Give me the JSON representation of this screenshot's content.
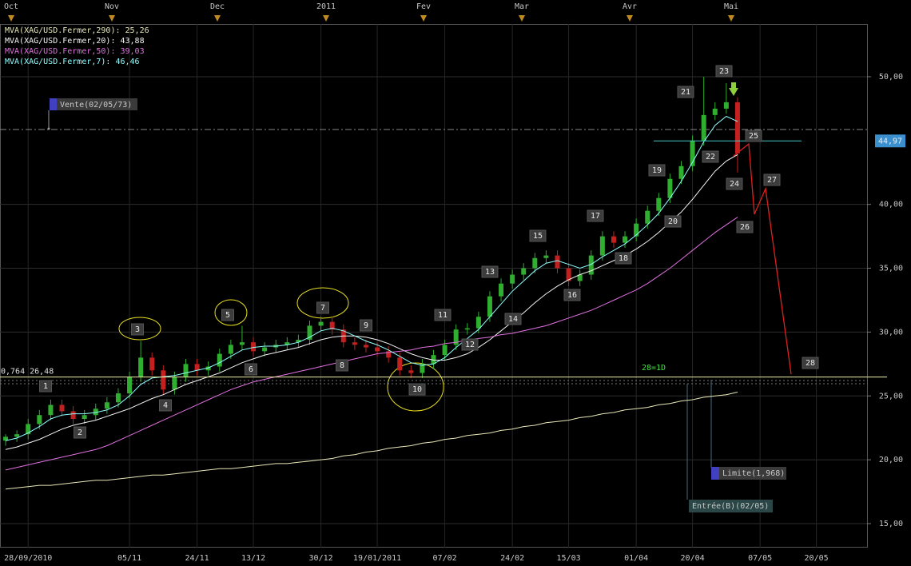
{
  "chart_data": {
    "type": "candlestick",
    "categories": [
      null,
      null,
      "28/09/2010",
      null,
      null,
      null,
      null,
      null,
      null,
      null,
      null,
      "05/11",
      null,
      null,
      null,
      null,
      null,
      "24/11",
      null,
      null,
      null,
      null,
      "13/12",
      null,
      null,
      null,
      null,
      null,
      "30/12",
      null,
      null,
      null,
      null,
      "19/01/2011",
      null,
      null,
      null,
      null,
      null,
      "07/02",
      null,
      null,
      null,
      null,
      null,
      "24/02",
      null,
      null,
      null,
      null,
      "15/03",
      null,
      null,
      null,
      null,
      null,
      "01/04",
      null,
      null,
      null,
      null,
      "20/04",
      null,
      null,
      null,
      null,
      null,
      "07/05",
      null,
      null,
      null,
      null,
      "20/05",
      null,
      null,
      null,
      null
    ],
    "open": [
      21.5,
      21.8,
      22.0,
      22.8,
      23.5,
      24.3,
      23.8,
      23.2,
      23.5,
      24.0,
      24.5,
      25.2,
      26.5,
      28.0,
      27.0,
      25.5,
      26.5,
      27.5,
      27.0,
      27.3,
      28.3,
      29.0,
      29.2,
      28.5,
      28.8,
      29.0,
      29.2,
      29.4,
      30.5,
      30.8,
      30.2,
      29.2,
      29.0,
      28.8,
      28.5,
      28.0,
      27.0,
      26.8,
      27.5,
      28.2,
      29.0,
      30.2,
      30.3,
      31.2,
      32.8,
      33.8,
      34.5,
      35.0,
      35.8,
      36.0,
      35.0,
      34.0,
      34.5,
      36.0,
      37.5,
      37.0,
      37.5,
      38.5,
      39.5,
      40.5,
      42.0,
      43.0,
      45.0,
      47.0,
      47.5,
      48.0,
      null,
      null,
      null,
      null,
      null,
      null,
      null,
      null,
      null,
      null,
      null
    ],
    "high": [
      22.0,
      22.3,
      23.2,
      23.9,
      24.7,
      24.7,
      24.2,
      23.9,
      24.4,
      24.9,
      25.6,
      26.9,
      29.3,
      28.4,
      27.4,
      26.9,
      27.9,
      27.9,
      27.7,
      28.7,
      29.4,
      30.5,
      29.6,
      29.2,
      29.4,
      29.6,
      29.8,
      30.9,
      31.2,
      31.2,
      30.6,
      29.6,
      29.4,
      29.2,
      28.9,
      28.4,
      27.4,
      27.9,
      28.6,
      29.4,
      30.6,
      30.7,
      31.6,
      33.2,
      34.2,
      34.9,
      35.4,
      36.2,
      36.4,
      36.4,
      35.4,
      34.9,
      36.4,
      37.9,
      37.9,
      37.9,
      38.9,
      39.9,
      40.9,
      42.4,
      43.4,
      45.4,
      50.0,
      48.0,
      49.5,
      48.4,
      null,
      null,
      null,
      null,
      null,
      null,
      null,
      null,
      null,
      null,
      null
    ],
    "low": [
      21.1,
      21.4,
      21.6,
      22.4,
      23.1,
      23.4,
      22.8,
      22.8,
      23.1,
      23.6,
      24.1,
      24.8,
      26.1,
      26.6,
      25.1,
      25.1,
      26.1,
      26.6,
      26.6,
      26.9,
      27.9,
      28.6,
      28.1,
      28.1,
      28.4,
      28.6,
      28.8,
      29.0,
      30.1,
      29.8,
      28.8,
      28.6,
      28.4,
      28.1,
      27.6,
      26.6,
      26.4,
      26.4,
      27.1,
      27.8,
      28.6,
      29.8,
      29.9,
      30.8,
      32.4,
      33.4,
      34.1,
      34.6,
      35.4,
      34.6,
      33.6,
      33.6,
      34.1,
      35.6,
      36.6,
      36.6,
      37.1,
      38.1,
      39.1,
      40.1,
      41.6,
      42.6,
      44.6,
      46.6,
      47.1,
      42.5,
      null,
      null,
      null,
      null,
      null,
      null,
      null,
      null,
      null,
      null,
      null
    ],
    "close": [
      21.8,
      22.0,
      22.8,
      23.5,
      24.3,
      23.8,
      23.2,
      23.5,
      24.0,
      24.5,
      25.2,
      26.5,
      28.0,
      27.0,
      25.5,
      26.5,
      27.5,
      27.0,
      27.3,
      28.3,
      29.0,
      29.2,
      28.5,
      28.8,
      29.0,
      29.2,
      29.4,
      30.5,
      30.8,
      30.2,
      29.2,
      29.0,
      28.8,
      28.5,
      28.0,
      27.0,
      26.8,
      27.5,
      28.2,
      29.0,
      30.2,
      30.3,
      31.2,
      32.8,
      33.8,
      34.5,
      35.0,
      35.8,
      36.0,
      35.0,
      34.0,
      34.5,
      36.0,
      37.5,
      37.0,
      37.5,
      38.5,
      39.5,
      40.5,
      42.0,
      43.0,
      45.0,
      47.0,
      47.5,
      48.0,
      44.0,
      null,
      null,
      null,
      null,
      null,
      null,
      null,
      null,
      null,
      null,
      null
    ],
    "up_color": "#2fae2f",
    "down_color": "#c42020",
    "series": [
      {
        "name": "MVA(XAG/USD.Fermer,290): 25,26",
        "color": "#e8e8b8",
        "values": [
          17.7,
          17.8,
          17.9,
          18.0,
          18.0,
          18.1,
          18.2,
          18.3,
          18.4,
          18.4,
          18.5,
          18.6,
          18.7,
          18.8,
          18.8,
          18.9,
          19.0,
          19.1,
          19.2,
          19.3,
          19.3,
          19.4,
          19.5,
          19.6,
          19.7,
          19.7,
          19.8,
          19.9,
          20.0,
          20.1,
          20.3,
          20.4,
          20.6,
          20.7,
          20.9,
          21.0,
          21.1,
          21.3,
          21.4,
          21.6,
          21.7,
          21.9,
          22.0,
          22.1,
          22.3,
          22.4,
          22.6,
          22.7,
          22.9,
          23.0,
          23.1,
          23.3,
          23.4,
          23.6,
          23.7,
          23.9,
          24.0,
          24.1,
          24.3,
          24.4,
          24.6,
          24.7,
          24.9,
          25.0,
          25.1,
          25.3,
          null,
          null,
          null,
          null,
          null,
          null,
          null,
          null,
          null,
          null,
          null
        ]
      },
      {
        "name": "MVA(XAG/USD.Fermer,20): 43,88",
        "color": "#f4f4f4",
        "values": [
          20.8,
          21.0,
          21.3,
          21.6,
          22.0,
          22.4,
          22.7,
          22.9,
          23.1,
          23.4,
          23.7,
          24.0,
          24.4,
          24.8,
          25.1,
          25.5,
          25.9,
          26.2,
          26.5,
          26.8,
          27.2,
          27.6,
          27.9,
          28.2,
          28.4,
          28.6,
          28.8,
          29.1,
          29.4,
          29.6,
          29.7,
          29.7,
          29.6,
          29.4,
          29.1,
          28.7,
          28.3,
          28.0,
          27.8,
          27.8,
          28.0,
          28.3,
          28.8,
          29.4,
          30.1,
          30.8,
          31.5,
          32.3,
          33.0,
          33.6,
          34.1,
          34.5,
          34.8,
          35.2,
          35.6,
          36.0,
          36.5,
          37.1,
          37.8,
          38.6,
          39.4,
          40.4,
          41.5,
          42.6,
          43.4,
          43.9,
          null,
          null,
          null,
          null,
          null,
          null,
          null,
          null,
          null,
          null,
          null
        ]
      },
      {
        "name": "MVA(XAG/USD.Fermer,50): 39,03",
        "color": "#e070e0",
        "values": [
          19.2,
          19.4,
          19.6,
          19.8,
          20.0,
          20.2,
          20.4,
          20.6,
          20.8,
          21.1,
          21.5,
          21.9,
          22.3,
          22.7,
          23.1,
          23.5,
          23.9,
          24.3,
          24.7,
          25.1,
          25.5,
          25.8,
          26.1,
          26.3,
          26.5,
          26.7,
          26.9,
          27.1,
          27.3,
          27.5,
          27.7,
          27.9,
          28.1,
          28.3,
          28.4,
          28.5,
          28.6,
          28.8,
          28.9,
          29.1,
          29.2,
          29.4,
          29.5,
          29.6,
          29.8,
          29.9,
          30.1,
          30.3,
          30.5,
          30.8,
          31.1,
          31.4,
          31.7,
          32.1,
          32.5,
          32.9,
          33.3,
          33.8,
          34.4,
          35.0,
          35.7,
          36.4,
          37.1,
          37.8,
          38.4,
          39.0,
          null,
          null,
          null,
          null,
          null,
          null,
          null,
          null,
          null,
          null,
          null
        ]
      },
      {
        "name": "MVA(XAG/USD.Fermer,7): 46,46",
        "color": "#90ffff",
        "values": [
          21.5,
          21.7,
          22.1,
          22.6,
          23.2,
          23.5,
          23.6,
          23.6,
          23.7,
          23.9,
          24.3,
          25.0,
          25.9,
          26.4,
          26.5,
          26.6,
          26.8,
          27.0,
          27.2,
          27.6,
          28.1,
          28.6,
          28.8,
          28.9,
          28.9,
          29.0,
          29.2,
          29.6,
          30.1,
          30.3,
          30.1,
          29.7,
          29.3,
          29.0,
          28.6,
          28.1,
          27.6,
          27.4,
          27.5,
          28.0,
          28.8,
          29.5,
          30.2,
          31.2,
          32.2,
          33.2,
          34.0,
          34.8,
          35.4,
          35.6,
          35.3,
          35.0,
          35.3,
          35.9,
          36.4,
          36.9,
          37.6,
          38.4,
          39.3,
          40.5,
          41.8,
          43.3,
          44.9,
          46.2,
          46.9,
          46.5,
          null,
          null,
          null,
          null,
          null,
          null,
          null,
          null,
          null,
          null,
          null
        ]
      }
    ],
    "ylim": [
      13.12,
      54.13
    ],
    "yticks": [
      {
        "value": 15,
        "label": "15,00"
      },
      {
        "value": 20,
        "label": "20,00"
      },
      {
        "value": 25,
        "label": "25,00"
      },
      {
        "value": 30,
        "label": "30,00"
      },
      {
        "value": 35,
        "label": "35,00"
      },
      {
        "value": 40,
        "label": "40,00"
      },
      {
        "value": 50,
        "label": "50,00"
      }
    ],
    "grid": true,
    "months": [
      "Oct",
      "Nov",
      "Dec",
      "2011",
      "Fev",
      "Mar",
      "Avr",
      "Mai"
    ],
    "levels": [
      {
        "value": 26.48,
        "label": "0,764 26,48",
        "color": "#f0f0a8"
      },
      {
        "value": 44.97,
        "label": "44,97",
        "color": "#40c8c8"
      }
    ],
    "annotations": [
      "1",
      "2",
      "3",
      "4",
      "5",
      "6",
      "7",
      "8",
      "9",
      "10",
      "11",
      "12",
      "13",
      "14",
      "15",
      "16",
      "17",
      "18",
      "19",
      "20",
      "21",
      "22",
      "23",
      "24",
      "25",
      "26",
      "27",
      "28"
    ],
    "ratio": "28=1D",
    "orders": {
      "vente": "Vente(02/05/73)",
      "limite": "Limite(1,968)",
      "entree": "Entrée(B)(02/05)"
    }
  }
}
